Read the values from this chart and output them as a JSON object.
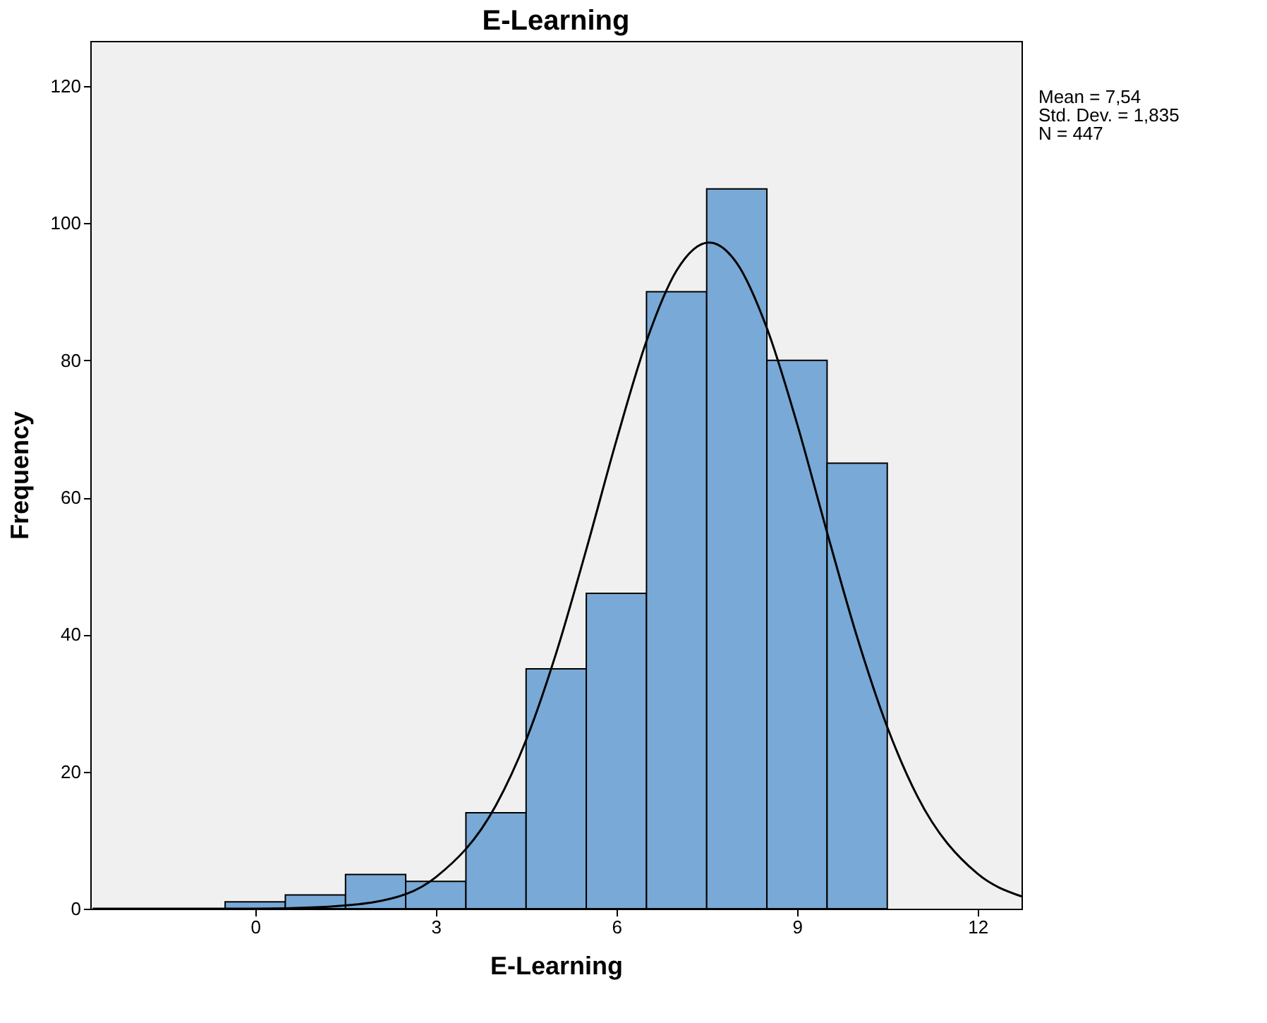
{
  "chart_data": {
    "type": "histogram",
    "title": "E-Learning",
    "xlabel": "E-Learning",
    "ylabel": "Frequency",
    "bins": [
      -0.5,
      0.5,
      1.5,
      2.5,
      3.5,
      4.5,
      5.5,
      6.5,
      7.5,
      8.5,
      9.5,
      10.5
    ],
    "values": [
      1,
      2,
      5,
      4,
      14,
      35,
      46,
      90,
      105,
      80,
      65
    ],
    "color": "#79a9d6",
    "series": [
      {
        "type": "line",
        "color": "#000000",
        "x": [
          -2.7,
          -2,
          0,
          1,
          2,
          3,
          4,
          4.5,
          5,
          5.5,
          6,
          6.5,
          7,
          7.54,
          8,
          8.5,
          9,
          9.5,
          10,
          10.5,
          11,
          12,
          12.73
        ],
        "values": [
          0,
          0,
          0,
          0.2,
          1,
          4.6,
          15.1,
          24.6,
          37.3,
          52.4,
          68.3,
          82.8,
          93.1,
          97.2,
          94.2,
          84.7,
          70.8,
          54.9,
          39.6,
          26.5,
          16.4,
          5.1,
          1.8
        ]
      }
    ],
    "xlim": [
      -2.74,
      12.73
    ],
    "xticks": [
      0,
      3,
      6,
      9,
      12
    ],
    "ylim": [
      0,
      126.6
    ],
    "yticks": [
      0,
      20,
      40,
      60,
      80,
      100,
      120
    ],
    "grid": false,
    "annotations": [
      "Mean = 7,54",
      "Std. Dev. = 1,835",
      "N = 447"
    ]
  }
}
